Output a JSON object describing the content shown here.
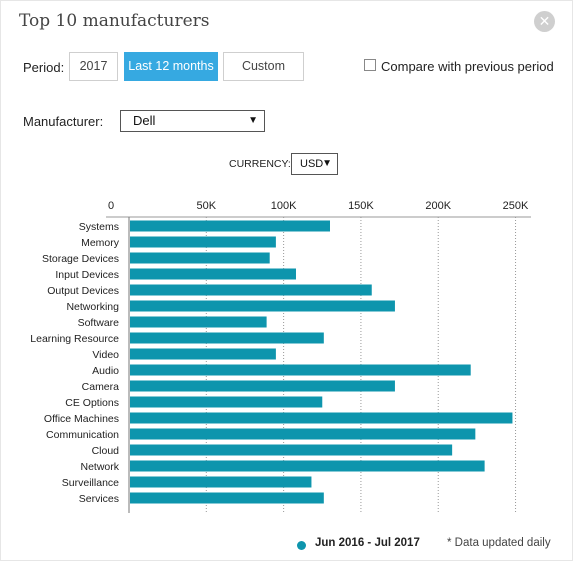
{
  "header": {
    "title": "Top 10 manufacturers"
  },
  "period": {
    "label": "Period:",
    "buttons": [
      "2017",
      "Last 12 months",
      "Custom"
    ],
    "compare_label": "Compare with previous period"
  },
  "manufacturer": {
    "label": "Manufacturer:",
    "value": "Dell"
  },
  "currency": {
    "label": "CURRENCY:",
    "value": "USD"
  },
  "footer": {
    "legend": "Jun 2016 - Jul 2017",
    "note": "* Data updated daily"
  },
  "colors": {
    "bar": "#0e95ad",
    "accent": "#36a9e1"
  },
  "chart_data": {
    "type": "bar",
    "orientation": "horizontal",
    "categories": [
      "Systems",
      "Memory",
      "Storage Devices",
      "Input Devices",
      "Output Devices",
      "Networking",
      "Software",
      "Learning Resource",
      "Video",
      "Audio",
      "Camera",
      "CE Options",
      "Office Machines",
      "Communication",
      "Cloud",
      "Network",
      "Surveillance",
      "Services"
    ],
    "series": [
      {
        "name": "Jun 2016 - Jul 2017",
        "values": [
          130000,
          95000,
          91000,
          108000,
          157000,
          172000,
          89000,
          126000,
          95000,
          221000,
          172000,
          125000,
          248000,
          224000,
          209000,
          230000,
          118000,
          126000
        ]
      }
    ],
    "xticks": [
      "0",
      "50K",
      "100K",
      "150K",
      "200K",
      "250K"
    ],
    "xlim": [
      0,
      260000
    ],
    "grid": "vertical dotted",
    "legend": "bottom"
  }
}
